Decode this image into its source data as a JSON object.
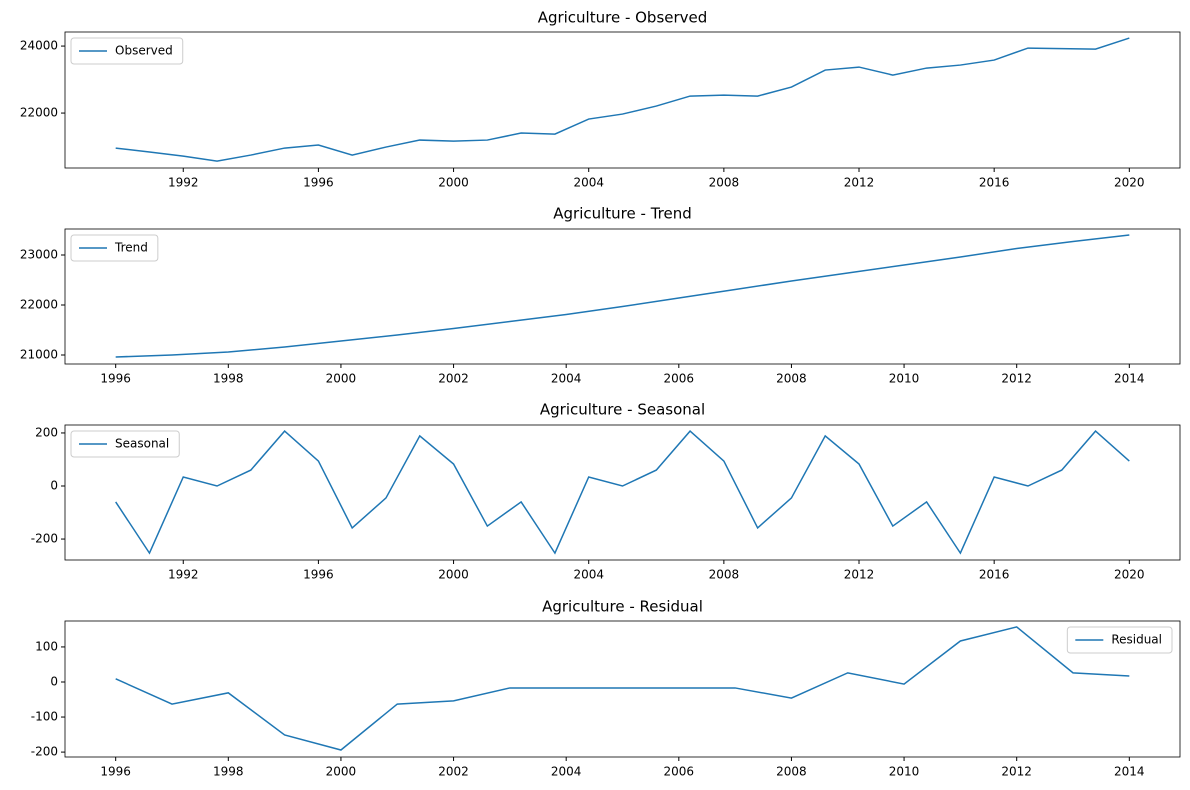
{
  "chart_data": [
    {
      "type": "line",
      "title": "Agriculture  - Observed",
      "x": [
        1990,
        1991,
        1992,
        1993,
        1994,
        1995,
        1996,
        1997,
        1998,
        1999,
        2000,
        2001,
        2002,
        2003,
        2004,
        2005,
        2006,
        2007,
        2008,
        2009,
        2010,
        2011,
        2012,
        2013,
        2014,
        2015,
        2016,
        2017,
        2018,
        2019,
        2020
      ],
      "series": [
        {
          "name": "Observed",
          "color": "#1f77b4",
          "values": [
            20955,
            20836,
            20716,
            20567,
            20746,
            20955,
            21045,
            20746,
            20985,
            21194,
            21164,
            21194,
            21403,
            21373,
            21821,
            21970,
            22209,
            22507,
            22537,
            22507,
            22776,
            23284,
            23373,
            23134,
            23343,
            23433,
            23582,
            23940,
            23925,
            23910,
            24239
          ]
        }
      ],
      "xlim": [
        1988.5,
        2021.5
      ],
      "xticks": [
        1992,
        1996,
        2000,
        2004,
        2008,
        2012,
        2016,
        2020
      ],
      "ylim": [
        20360,
        24420
      ],
      "yticks": [
        22000,
        24000
      ],
      "legend": "upper left"
    },
    {
      "type": "line",
      "title": "Agriculture  - Trend",
      "x": [
        1996,
        1997,
        1998,
        1999,
        2000,
        2001,
        2002,
        2003,
        2004,
        2005,
        2006,
        2007,
        2008,
        2009,
        2010,
        2011,
        2012,
        2013,
        2014
      ],
      "series": [
        {
          "name": "Trend",
          "color": "#1f77b4",
          "values": [
            20960,
            21000,
            21060,
            21160,
            21280,
            21400,
            21530,
            21670,
            21810,
            21970,
            22140,
            22310,
            22480,
            22640,
            22800,
            22960,
            23130,
            23270,
            23400
          ]
        }
      ],
      "xlim": [
        1995.1,
        2014.9
      ],
      "xticks": [
        1996,
        1998,
        2000,
        2002,
        2004,
        2006,
        2008,
        2010,
        2012,
        2014
      ],
      "ylim": [
        20820,
        23520
      ],
      "yticks": [
        21000,
        22000,
        23000
      ],
      "legend": "upper left"
    },
    {
      "type": "line",
      "title": "Agriculture  - Seasonal",
      "x": [
        1990,
        1991,
        1992,
        1993,
        1994,
        1995,
        1996,
        1997,
        1998,
        1999,
        2000,
        2001,
        2002,
        2003,
        2004,
        2005,
        2006,
        2007,
        2008,
        2009,
        2010,
        2011,
        2012,
        2013,
        2014,
        2015,
        2016,
        2017,
        2018,
        2019,
        2020
      ],
      "series": [
        {
          "name": "Seasonal",
          "color": "#1f77b4",
          "values": [
            -60,
            -253,
            34,
            0,
            60,
            207,
            94,
            -158,
            -45,
            189,
            83,
            -151,
            -60,
            -253,
            34,
            0,
            60,
            207,
            94,
            -158,
            -45,
            189,
            83,
            -151,
            -60,
            -253,
            34,
            0,
            60,
            207,
            94
          ]
        }
      ],
      "xlim": [
        1988.5,
        2021.5
      ],
      "xticks": [
        1992,
        1996,
        2000,
        2004,
        2008,
        2012,
        2016,
        2020
      ],
      "ylim": [
        -279,
        230
      ],
      "yticks": [
        -200,
        0,
        200
      ],
      "legend": "upper left"
    },
    {
      "type": "line",
      "title": "Agriculture  - Residual",
      "x": [
        1996,
        1997,
        1998,
        1999,
        2000,
        2001,
        2002,
        2003,
        2004,
        2005,
        2006,
        2007,
        2008,
        2009,
        2010,
        2011,
        2012,
        2013,
        2014
      ],
      "series": [
        {
          "name": "Residual",
          "color": "#1f77b4",
          "values": [
            9,
            -63,
            -31,
            -151,
            -194,
            -63,
            -54,
            -17,
            -17,
            -17,
            -17,
            -17,
            -46,
            26,
            -6,
            117,
            157,
            26,
            17
          ]
        }
      ],
      "xlim": [
        1995.1,
        2014.9
      ],
      "xticks": [
        1996,
        1998,
        2000,
        2002,
        2004,
        2006,
        2008,
        2010,
        2012,
        2014
      ],
      "ylim": [
        -214,
        174
      ],
      "yticks": [
        -200,
        -100,
        0,
        100
      ],
      "legend": "upper right"
    }
  ]
}
